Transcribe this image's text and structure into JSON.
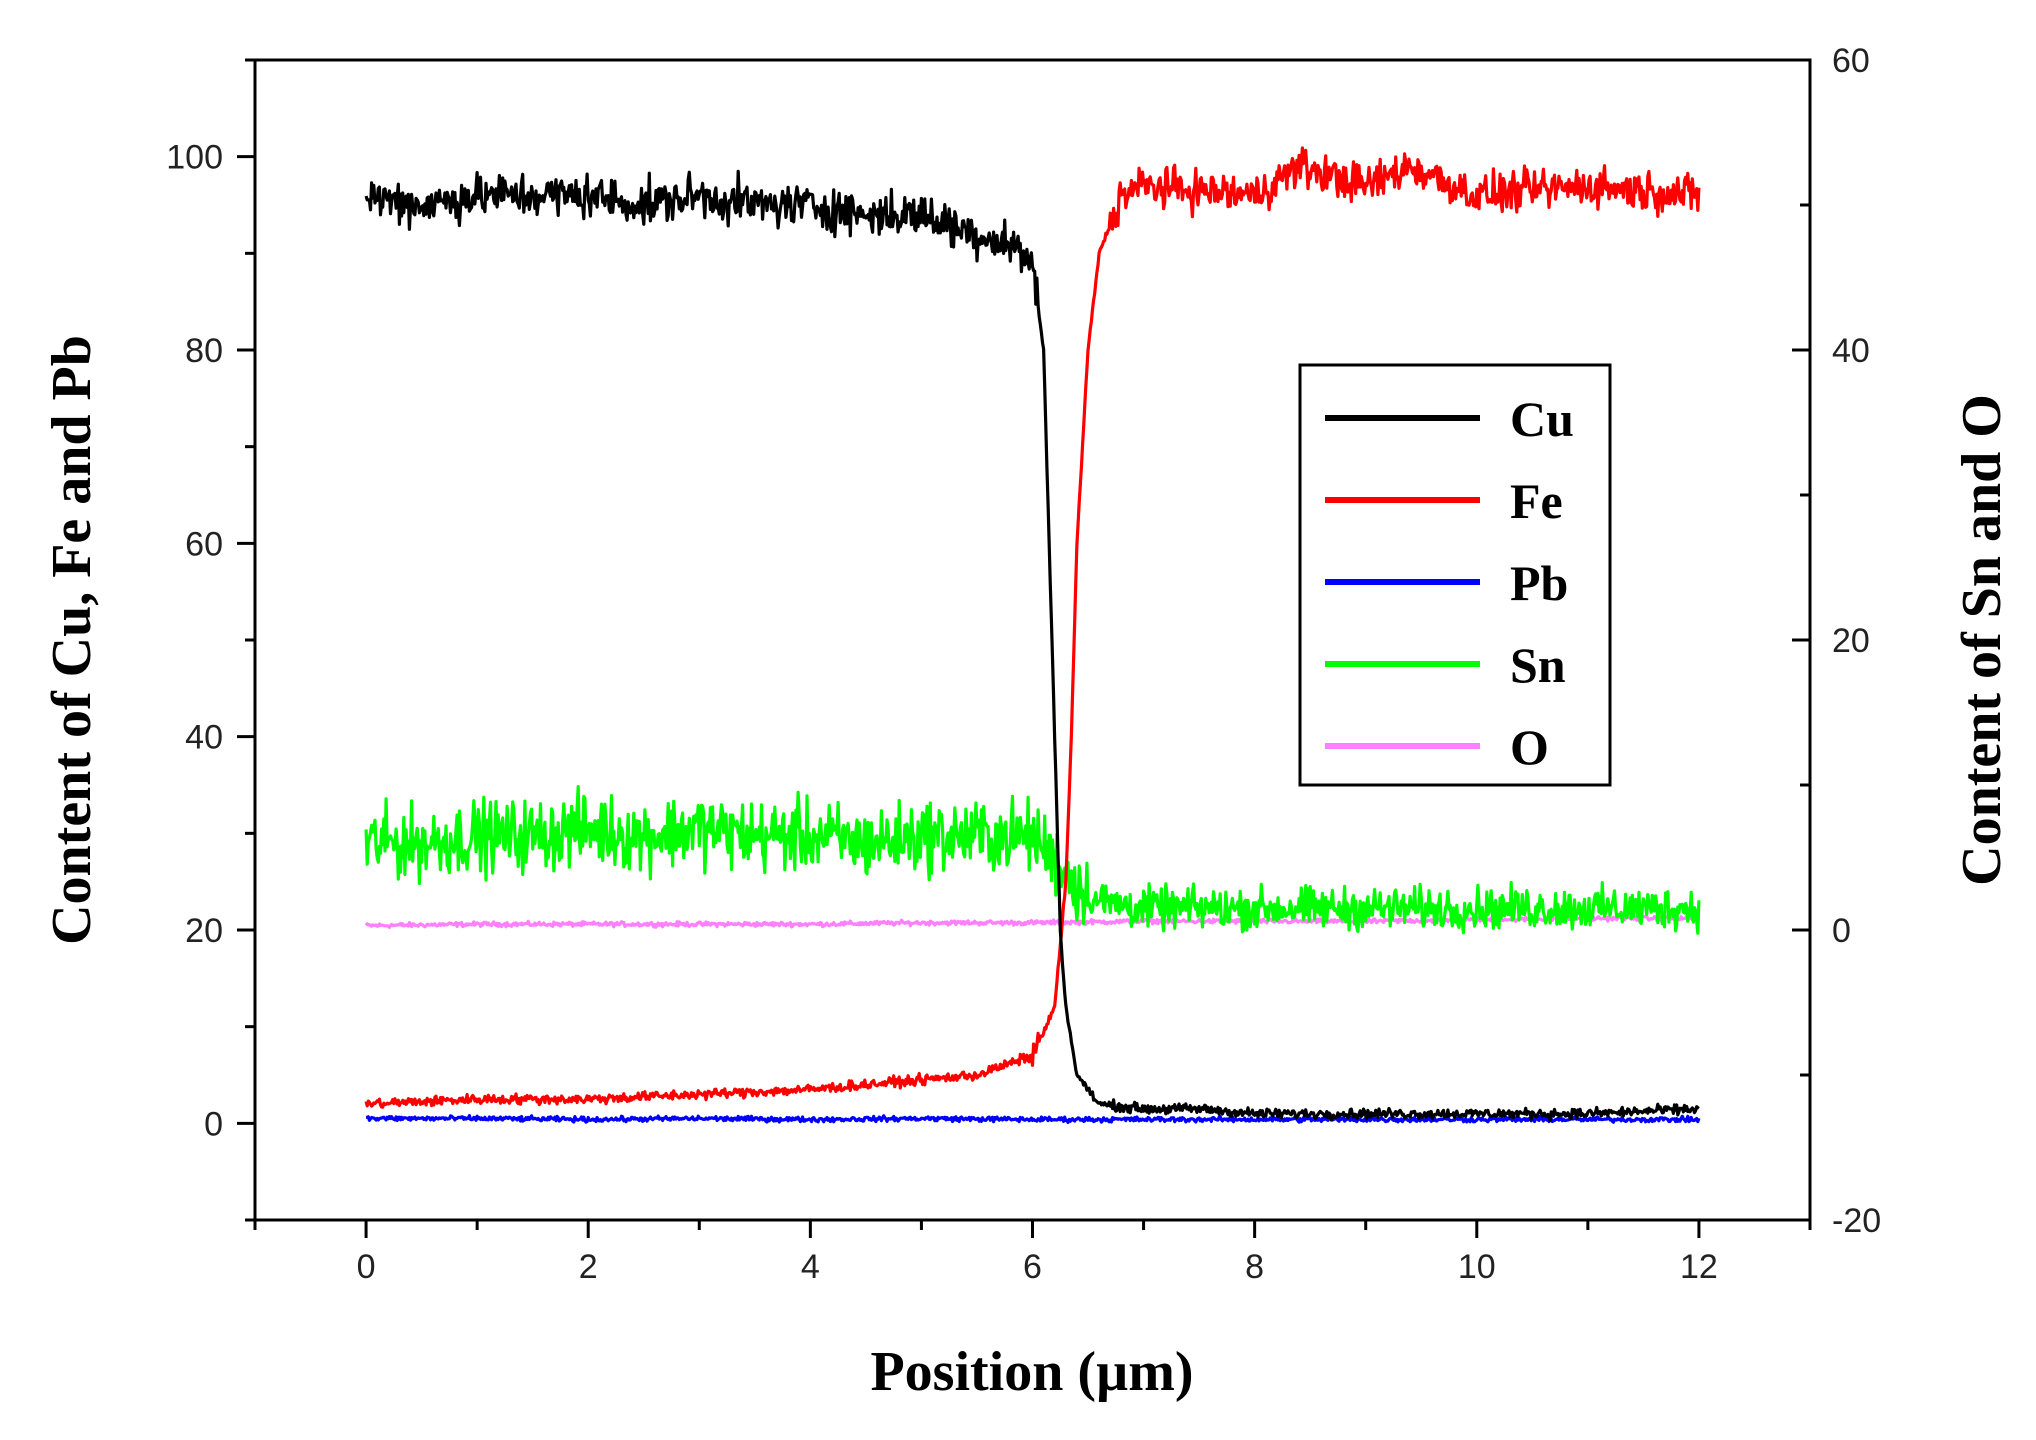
{
  "chart_data": {
    "type": "line",
    "title": "",
    "xlabel": "Position (µm)",
    "ylabel_left": "Content of Cu, Fe and Pb",
    "ylabel_right": "Content of Sn and O",
    "xlim": [
      -1,
      13
    ],
    "ylim_left": [
      -10,
      110
    ],
    "ylim_right": [
      -20,
      60
    ],
    "x_ticks": [
      0,
      2,
      4,
      6,
      8,
      10,
      12
    ],
    "x_tick_labels": [
      "0",
      "2",
      "4",
      "6",
      "8",
      "10",
      "12"
    ],
    "y_left_ticks": [
      0,
      20,
      40,
      60,
      80,
      100
    ],
    "y_left_tick_labels": [
      "0",
      "20",
      "40",
      "60",
      "80",
      "100"
    ],
    "y_right_ticks": [
      -20,
      0,
      20,
      40,
      60
    ],
    "y_right_tick_labels": [
      "-20",
      "0",
      "20",
      "40",
      "60"
    ],
    "grid": false,
    "legend_position": "center-right",
    "series": [
      {
        "name": "Cu",
        "axis": "left",
        "color": "#000000",
        "x": [
          0,
          0.5,
          1,
          1.5,
          2,
          2.5,
          3,
          3.5,
          4,
          4.5,
          5,
          5.5,
          5.8,
          6.0,
          6.1,
          6.2,
          6.25,
          6.3,
          6.4,
          6.6,
          7,
          7.5,
          8,
          9,
          10,
          11,
          12
        ],
        "values": [
          96,
          95,
          96,
          96,
          96,
          95,
          96,
          95,
          95,
          94,
          94,
          92,
          91,
          89,
          80,
          40,
          20,
          12,
          5,
          2,
          1.5,
          1.5,
          1,
          1,
          1,
          1,
          1.5
        ]
      },
      {
        "name": "Fe",
        "axis": "left",
        "color": "#ff0000",
        "x": [
          0,
          1,
          2,
          3,
          4,
          5,
          5.5,
          6.0,
          6.2,
          6.3,
          6.35,
          6.4,
          6.5,
          6.6,
          6.8,
          7,
          8,
          8.4,
          9,
          9.4,
          10,
          11,
          12
        ],
        "values": [
          2,
          2.5,
          2.5,
          3,
          3.5,
          4.5,
          5,
          7,
          12,
          25,
          40,
          60,
          80,
          90,
          96,
          97,
          96,
          99,
          97,
          99,
          96,
          97,
          96
        ]
      },
      {
        "name": "Pb",
        "axis": "left",
        "color": "#0000ff",
        "x": [
          0,
          1,
          2,
          3,
          4,
          5,
          6,
          7,
          8,
          9,
          10,
          11,
          12
        ],
        "values": [
          0.5,
          0.5,
          0.4,
          0.5,
          0.4,
          0.5,
          0.4,
          0.4,
          0.4,
          0.4,
          0.4,
          0.4,
          0.4
        ]
      },
      {
        "name": "Sn",
        "axis": "right",
        "color": "#00ff00",
        "x": [
          0,
          0.5,
          1,
          1.5,
          2,
          2.5,
          3,
          3.5,
          4,
          4.5,
          5,
          5.5,
          6,
          6.2,
          6.4,
          6.6,
          7,
          8,
          9,
          10,
          11,
          12
        ],
        "values": [
          6,
          6,
          6.5,
          6.5,
          7,
          6.5,
          7,
          6.5,
          6.5,
          6,
          6.5,
          6.5,
          6.5,
          5,
          3,
          2,
          1.5,
          1.5,
          1.5,
          1.5,
          1.5,
          1.5
        ]
      },
      {
        "name": "O",
        "axis": "right",
        "color": "#ff80ff",
        "x": [
          0,
          1,
          2,
          3,
          4,
          5,
          6,
          7,
          8,
          9,
          10,
          11,
          12
        ],
        "values": [
          0.3,
          0.4,
          0.4,
          0.4,
          0.4,
          0.5,
          0.5,
          0.6,
          0.6,
          0.6,
          0.7,
          0.8,
          0.8
        ]
      }
    ]
  }
}
